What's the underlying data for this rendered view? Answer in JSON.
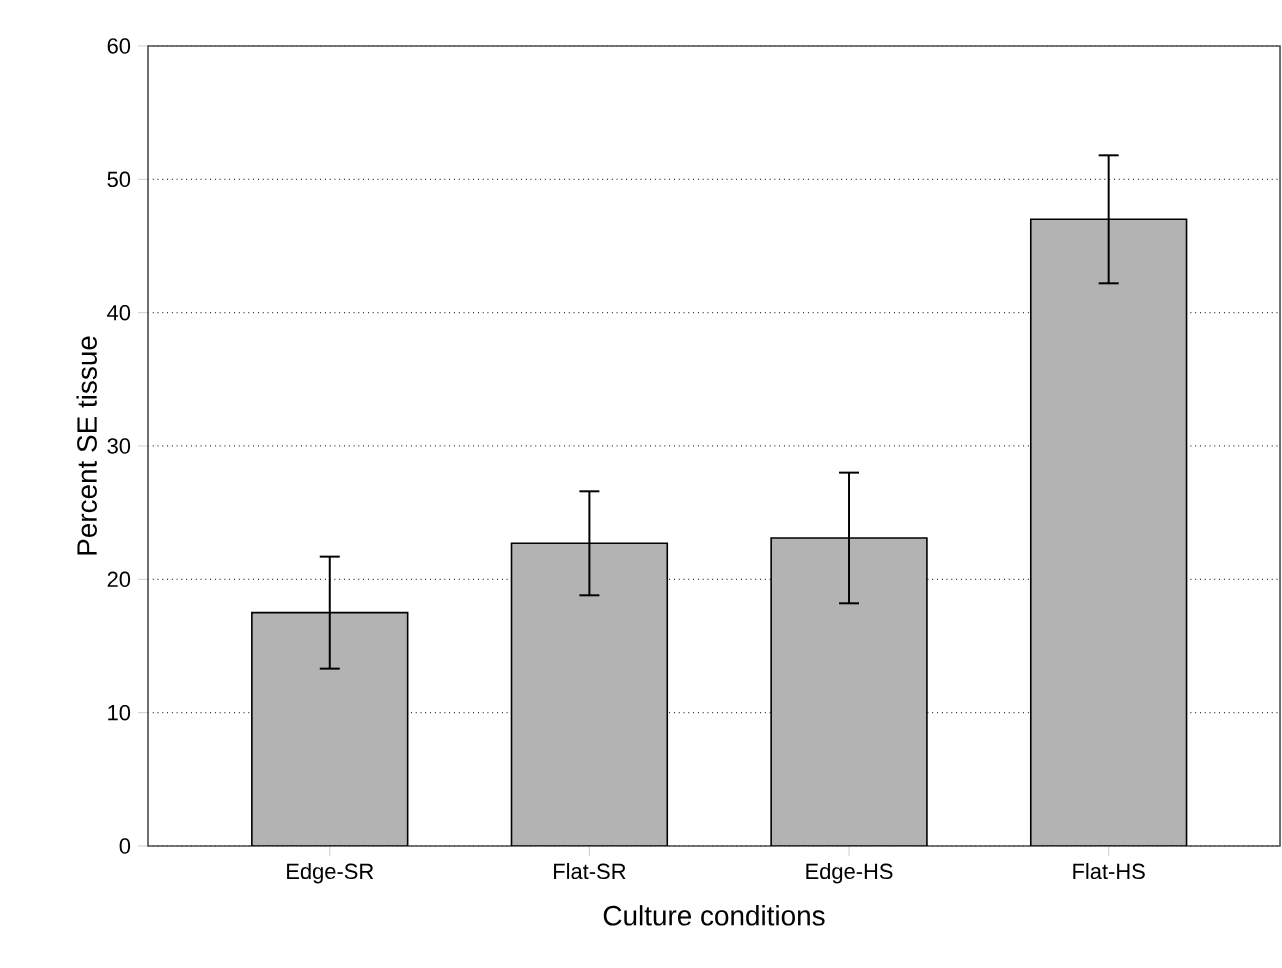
{
  "chart_data": {
    "type": "bar",
    "xlabel": "Culture conditions",
    "ylabel": "Percent SE tissue",
    "categories": [
      "Edge-SR",
      "Flat-SR",
      "Edge-HS",
      "Flat-HS"
    ],
    "values": [
      17.5,
      22.7,
      23.1,
      47.0
    ],
    "errors": [
      4.2,
      3.9,
      4.9,
      4.8
    ],
    "color": "#b3b3b3",
    "ylim": [
      0,
      60
    ],
    "yticks": [
      0,
      10,
      20,
      30,
      40,
      50,
      60
    ],
    "grid": "y"
  }
}
